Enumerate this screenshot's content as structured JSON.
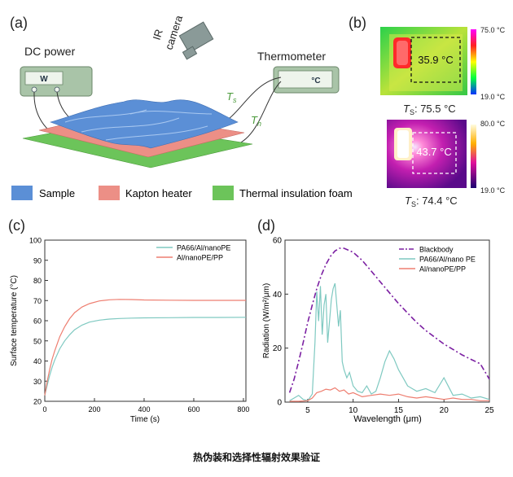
{
  "caption": "热伪装和选择性辐射效果验证",
  "panel_a": {
    "label": "(a)",
    "dc_power": "DC power",
    "dc_display": "W",
    "ir_camera_line1": "IR",
    "ir_camera_line2": "camera",
    "thermometer": "Thermometer",
    "thermo_display": "°C",
    "ts_label": "T",
    "ts_sub": "s",
    "th_label": "T",
    "th_sub": "h",
    "legend": [
      {
        "label": "Sample",
        "color": "#5b8fd6"
      },
      {
        "label": "Kapton heater",
        "color": "#ec8f86"
      },
      {
        "label": "Thermal insulation foam",
        "color": "#6cc45a"
      }
    ]
  },
  "panel_b": {
    "label": "(b)",
    "image1": {
      "box_temp": "35.9 °C",
      "scale_max": "75.0 °C",
      "scale_min": "19.0 °C",
      "ts_prefix": "T",
      "ts_sub": "S",
      "ts_value": ": 75.5 °C"
    },
    "image2": {
      "box_temp": "43.7 °C",
      "scale_max": "80.0 °C",
      "scale_min": "19.0 °C",
      "ts_prefix": "T",
      "ts_sub": "S",
      "ts_value": ": 74.4 °C"
    }
  },
  "chart_data": [
    {
      "panel": "(c)",
      "type": "line",
      "xlabel": "Time (s)",
      "ylabel": "Surface temperature (°C)",
      "xlim": [
        0,
        810
      ],
      "ylim": [
        20,
        100
      ],
      "xticks": [
        0,
        200,
        400,
        600,
        800
      ],
      "yticks": [
        20,
        30,
        40,
        50,
        60,
        70,
        80,
        90,
        100
      ],
      "legend_position": "top-right",
      "series": [
        {
          "name": "PA66/Al/nanoPE",
          "color": "#7fc9c1",
          "x": [
            0,
            10,
            20,
            30,
            40,
            60,
            80,
            100,
            120,
            150,
            180,
            220,
            260,
            300,
            350,
            400,
            500,
            600,
            700,
            810
          ],
          "y": [
            23,
            28,
            33,
            37,
            40.5,
            46,
            50,
            53,
            55.5,
            57.8,
            59.3,
            60.3,
            60.8,
            61.1,
            61.3,
            61.4,
            61.5,
            61.6,
            61.6,
            61.7
          ]
        },
        {
          "name": "Al/nanoPE/PP",
          "color": "#ee7e70",
          "x": [
            0,
            10,
            20,
            30,
            40,
            60,
            80,
            100,
            120,
            150,
            180,
            220,
            260,
            300,
            350,
            400,
            500,
            600,
            700,
            810
          ],
          "y": [
            23,
            30,
            36,
            41,
            45,
            52,
            57,
            61,
            64,
            66.8,
            68.5,
            69.8,
            70.4,
            70.6,
            70.5,
            70.3,
            70.2,
            70.1,
            70.1,
            70.1
          ]
        }
      ]
    },
    {
      "panel": "(d)",
      "type": "line",
      "xlabel": "Wavelength (μm)",
      "ylabel": "Radiation (W/m²/μm)",
      "xlim": [
        2.5,
        25
      ],
      "ylim": [
        0,
        60
      ],
      "xticks": [
        5,
        10,
        15,
        20,
        25
      ],
      "yticks": [
        0,
        20,
        40,
        60
      ],
      "legend_position": "top-right",
      "series": [
        {
          "name": "Blackbody",
          "color": "#7b1fa2",
          "dashed": true,
          "x": [
            3,
            3.5,
            4,
            4.5,
            5,
            5.5,
            6,
            6.5,
            7,
            7.5,
            8,
            8.5,
            9,
            10,
            11,
            12,
            13,
            14,
            15,
            16,
            17,
            18,
            19,
            20,
            21,
            22,
            23,
            24,
            25
          ],
          "y": [
            3.5,
            8.5,
            15,
            22,
            29.5,
            36,
            42,
            47,
            51,
            54,
            56,
            57,
            57,
            55.5,
            52.5,
            48.5,
            44.5,
            40.5,
            36.5,
            33,
            29.5,
            26.5,
            24,
            21.5,
            19.5,
            17.5,
            15.8,
            14.2,
            8.5
          ]
        },
        {
          "name": "PA66/Al/nano PE",
          "color": "#7fc9c1",
          "x": [
            3,
            3.5,
            4,
            4.5,
            5,
            5.5,
            5.8,
            6.0,
            6.2,
            6.4,
            6.6,
            6.8,
            7.0,
            7.2,
            7.4,
            7.6,
            7.8,
            8.0,
            8.2,
            8.4,
            8.6,
            8.8,
            9.0,
            9.3,
            9.6,
            10,
            10.5,
            11,
            11.5,
            12,
            12.5,
            13,
            13.5,
            14,
            14.5,
            15,
            15.5,
            16,
            17,
            18,
            19,
            20,
            21,
            22,
            23,
            24,
            25
          ],
          "y": [
            0.5,
            1.5,
            2.5,
            1,
            0.5,
            3,
            22,
            41,
            30,
            43,
            25,
            36,
            40,
            22,
            30,
            38,
            42,
            44,
            36,
            28,
            34,
            15,
            12,
            9,
            11,
            6,
            4,
            3.5,
            6,
            3,
            4,
            9,
            15,
            19,
            16,
            12,
            9,
            6,
            4,
            5,
            3.5,
            9,
            2.5,
            3,
            1.5,
            2,
            1
          ]
        },
        {
          "name": "Al/nanoPE/PP",
          "color": "#ee7e70",
          "x": [
            3,
            4,
            5,
            5.5,
            6,
            6.5,
            7,
            7.5,
            8,
            8.5,
            9,
            9.5,
            10,
            11,
            12,
            13,
            14,
            15,
            16,
            17,
            18,
            19,
            20,
            21,
            22,
            23,
            24,
            25
          ],
          "y": [
            0.3,
            0.3,
            0.5,
            1.5,
            3.5,
            4,
            4.8,
            4.5,
            5.3,
            4,
            4.5,
            3,
            3.5,
            2,
            2.5,
            3,
            2.5,
            3,
            2,
            1.5,
            2,
            1.5,
            1,
            1.5,
            1,
            1,
            0.5,
            0.5
          ]
        }
      ]
    }
  ]
}
